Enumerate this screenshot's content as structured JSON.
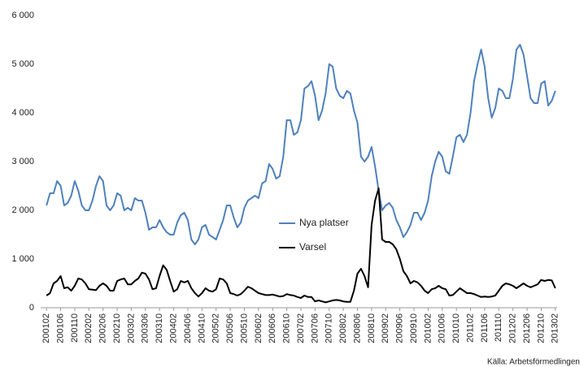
{
  "chart_data": {
    "type": "line",
    "categories": [
      "200102",
      null,
      null,
      null,
      "200106",
      null,
      null,
      null,
      "200110",
      null,
      null,
      null,
      "200202",
      null,
      null,
      null,
      "200206",
      null,
      null,
      null,
      "200210",
      null,
      null,
      null,
      "200302",
      null,
      null,
      null,
      "200306",
      null,
      null,
      null,
      "200310",
      null,
      null,
      null,
      "200402",
      null,
      null,
      null,
      "200406",
      null,
      null,
      null,
      "200410",
      null,
      null,
      null,
      "200502",
      null,
      null,
      null,
      "200506",
      null,
      null,
      null,
      "200510",
      null,
      null,
      null,
      "200602",
      null,
      null,
      null,
      "200606",
      null,
      null,
      null,
      "200610",
      null,
      null,
      null,
      "200702",
      null,
      null,
      null,
      "200706",
      null,
      null,
      null,
      "200710",
      null,
      null,
      null,
      "200802",
      null,
      null,
      null,
      "200806",
      null,
      null,
      null,
      "200810",
      null,
      null,
      null,
      "200902",
      null,
      null,
      null,
      "200906",
      null,
      null,
      null,
      "200910",
      null,
      null,
      null,
      "201002",
      null,
      null,
      null,
      "201006",
      null,
      null,
      null,
      "201010",
      null,
      null,
      null,
      "201102",
      null,
      null,
      null,
      "201106",
      null,
      null,
      null,
      "201110",
      null,
      null,
      null,
      "201202",
      null,
      null,
      null,
      "201206",
      null,
      null,
      null,
      "201210",
      null,
      null,
      null,
      "201302"
    ],
    "series": [
      {
        "name": "Nya platser",
        "color": "#4f81bd",
        "values": [
          2100,
          2350,
          2350,
          2600,
          2500,
          2100,
          2150,
          2300,
          2600,
          2400,
          2100,
          2000,
          2000,
          2200,
          2500,
          2700,
          2600,
          2100,
          2000,
          2100,
          2350,
          2300,
          2000,
          2050,
          2000,
          2250,
          2200,
          2200,
          1950,
          1600,
          1650,
          1650,
          1800,
          1650,
          1550,
          1500,
          1500,
          1750,
          1900,
          1950,
          1800,
          1400,
          1300,
          1400,
          1650,
          1700,
          1500,
          1450,
          1400,
          1600,
          1800,
          2100,
          2100,
          1850,
          1650,
          1750,
          2050,
          2200,
          2250,
          2300,
          2250,
          2550,
          2600,
          2950,
          2850,
          2650,
          2700,
          3100,
          3850,
          3850,
          3550,
          3600,
          3850,
          4500,
          4550,
          4650,
          4350,
          3850,
          4050,
          4400,
          5000,
          4950,
          4500,
          4350,
          4300,
          4450,
          4400,
          4050,
          3800,
          3100,
          3000,
          3100,
          3300,
          2900,
          2400,
          2000,
          2100,
          2150,
          2050,
          1800,
          1650,
          1450,
          1550,
          1700,
          1950,
          1950,
          1800,
          1950,
          2200,
          2700,
          3000,
          3200,
          3100,
          2800,
          2750,
          3100,
          3500,
          3550,
          3400,
          3550,
          4000,
          4650,
          5000,
          5300,
          4950,
          4300,
          3900,
          4100,
          4500,
          4450,
          4300,
          4300,
          4700,
          5300,
          5400,
          5200,
          4750,
          4300,
          4200,
          4200,
          4600,
          4650,
          4150,
          4250,
          4450
        ]
      },
      {
        "name": "Varsel",
        "color": "#000000",
        "values": [
          250,
          300,
          500,
          550,
          650,
          400,
          420,
          350,
          450,
          600,
          580,
          500,
          380,
          370,
          360,
          450,
          500,
          450,
          350,
          350,
          550,
          580,
          600,
          480,
          480,
          550,
          600,
          720,
          700,
          580,
          380,
          400,
          650,
          870,
          780,
          550,
          330,
          380,
          550,
          520,
          550,
          400,
          300,
          230,
          300,
          400,
          350,
          330,
          380,
          600,
          580,
          500,
          300,
          280,
          250,
          280,
          350,
          430,
          400,
          350,
          300,
          280,
          260,
          260,
          270,
          250,
          230,
          240,
          280,
          260,
          250,
          220,
          200,
          250,
          220,
          220,
          130,
          150,
          130,
          110,
          130,
          150,
          160,
          150,
          130,
          120,
          120,
          350,
          700,
          800,
          650,
          420,
          1700,
          2200,
          2450,
          1400,
          1350,
          1350,
          1300,
          1200,
          1000,
          750,
          650,
          500,
          550,
          520,
          450,
          350,
          300,
          380,
          400,
          450,
          400,
          380,
          250,
          260,
          330,
          400,
          350,
          300,
          300,
          280,
          250,
          220,
          230,
          220,
          230,
          250,
          350,
          450,
          500,
          480,
          450,
          400,
          450,
          500,
          450,
          420,
          450,
          480,
          570,
          550,
          570,
          560,
          400
        ]
      }
    ],
    "ylim": [
      0,
      6000
    ],
    "yticks": [
      0,
      {
        "value": 1000,
        "label": "1 000"
      },
      {
        "value": 2000,
        "label": "2 000"
      },
      {
        "value": 3000,
        "label": "3 000"
      },
      {
        "value": 4000,
        "label": "4 000"
      },
      {
        "value": 5000,
        "label": "5 000"
      },
      {
        "value": 6000,
        "label": "6 000"
      }
    ],
    "legend": "center",
    "source": "Källa: Arbetsförmedlingen"
  }
}
